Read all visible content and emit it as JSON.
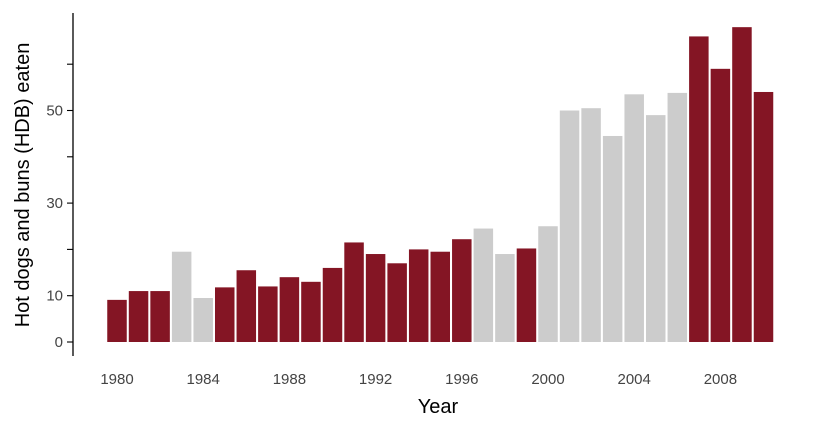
{
  "chart_data": {
    "type": "bar",
    "xlabel": "Year",
    "ylabel": "Hot dogs and buns (HDB) eaten",
    "ylim": [
      0,
      70
    ],
    "yticks_labeled": [
      0,
      10,
      30,
      50
    ],
    "yticks_minor": [
      20,
      40,
      60
    ],
    "xticks": [
      1980,
      1984,
      1988,
      1992,
      1996,
      2000,
      2004,
      2008
    ],
    "xlim": [
      1979,
      2011
    ],
    "grid": false,
    "legend": "none",
    "colors": {
      "highlight": "#841524",
      "default": "#cccccc"
    },
    "bars": [
      {
        "x": 1980,
        "value": 9.1,
        "highlight": true
      },
      {
        "x": 1981,
        "value": 11,
        "highlight": true
      },
      {
        "x": 1982,
        "value": 11,
        "highlight": true
      },
      {
        "x": 1983,
        "value": 19.5,
        "highlight": false
      },
      {
        "x": 1984,
        "value": 9.5,
        "highlight": false
      },
      {
        "x": 1985,
        "value": 11.8,
        "highlight": true
      },
      {
        "x": 1986,
        "value": 15.5,
        "highlight": true
      },
      {
        "x": 1987,
        "value": 12,
        "highlight": true
      },
      {
        "x": 1988,
        "value": 14,
        "highlight": true
      },
      {
        "x": 1989,
        "value": 13,
        "highlight": true
      },
      {
        "x": 1990,
        "value": 16,
        "highlight": true
      },
      {
        "x": 1991,
        "value": 21.5,
        "highlight": true
      },
      {
        "x": 1992,
        "value": 19,
        "highlight": true
      },
      {
        "x": 1993,
        "value": 17,
        "highlight": true
      },
      {
        "x": 1994,
        "value": 20,
        "highlight": true
      },
      {
        "x": 1995,
        "value": 19.5,
        "highlight": true
      },
      {
        "x": 1996,
        "value": 22.2,
        "highlight": true
      },
      {
        "x": 1997,
        "value": 24.5,
        "highlight": false
      },
      {
        "x": 1998,
        "value": 19,
        "highlight": false
      },
      {
        "x": 1999,
        "value": 20.2,
        "highlight": true
      },
      {
        "x": 2000,
        "value": 25,
        "highlight": false
      },
      {
        "x": 2001,
        "value": 50,
        "highlight": false
      },
      {
        "x": 2002,
        "value": 50.5,
        "highlight": false
      },
      {
        "x": 2003,
        "value": 44.5,
        "highlight": false
      },
      {
        "x": 2004,
        "value": 53.5,
        "highlight": false
      },
      {
        "x": 2005,
        "value": 49,
        "highlight": false
      },
      {
        "x": 2006,
        "value": 53.8,
        "highlight": false
      },
      {
        "x": 2007,
        "value": 66,
        "highlight": true
      },
      {
        "x": 2008,
        "value": 59,
        "highlight": true
      },
      {
        "x": 2009,
        "value": 68,
        "highlight": true
      },
      {
        "x": 2010,
        "value": 54,
        "highlight": true
      }
    ]
  }
}
